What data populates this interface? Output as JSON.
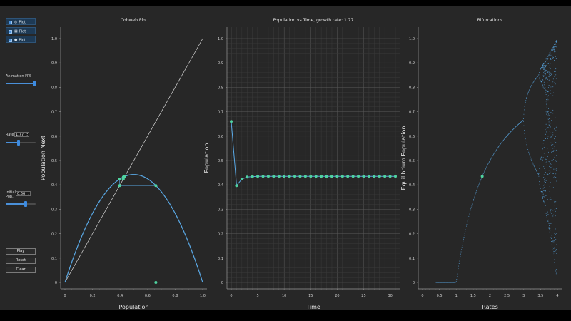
{
  "controls": {
    "checkboxes": [
      {
        "label": "Plot",
        "icon": "circle-icon"
      },
      {
        "label": "Plot",
        "icon": "square-icon"
      },
      {
        "label": "Plot",
        "icon": "dot-icon"
      }
    ],
    "fps": {
      "label": "Animation FPS",
      "level": 0.95
    },
    "rate": {
      "label": "Rate",
      "value": "1.77",
      "level": 0.44
    },
    "init": {
      "label_line1": "Initial",
      "label_line2": "Pop.",
      "value": "0.66",
      "level": 0.66
    },
    "buttons": {
      "play": "Play",
      "reset": "Reset",
      "clear": "Clear"
    }
  },
  "colors": {
    "accent": "#4a90d9",
    "line": "#5aa9e6",
    "marker": "#4fd3a0"
  },
  "chart_data": [
    {
      "type": "line",
      "title": "Cobweb Plot",
      "xlabel": "Population",
      "ylabel": "Population Next",
      "xlim": [
        0,
        1
      ],
      "ylim": [
        0,
        1
      ],
      "xticks": [
        "0",
        "0.2",
        "0.4",
        "0.6",
        "0.8",
        "1.0"
      ],
      "yticks": [
        "0",
        "0.1",
        "0.2",
        "0.3",
        "0.4",
        "0.5",
        "0.6",
        "0.7",
        "0.8",
        "0.9",
        "1.0"
      ],
      "rate": 1.77,
      "cobweb": [
        [
          0.66,
          0
        ],
        [
          0.66,
          0.397
        ],
        [
          0.397,
          0.397
        ],
        [
          0.397,
          0.424
        ],
        [
          0.424,
          0.424
        ],
        [
          0.424,
          0.432
        ],
        [
          0.432,
          0.432
        ],
        [
          0.432,
          0.434
        ],
        [
          0.434,
          0.434
        ]
      ],
      "grid": false
    },
    {
      "type": "line",
      "title": "Population vs Time, growth rate: 1.77",
      "xlabel": "Time",
      "ylabel": "Population",
      "xlim": [
        0,
        31
      ],
      "ylim": [
        0,
        1
      ],
      "xticks": [
        "0",
        "5",
        "10",
        "15",
        "20",
        "25",
        "30"
      ],
      "yticks": [
        "0",
        "0.1",
        "0.2",
        "0.3",
        "0.4",
        "0.5",
        "0.6",
        "0.7",
        "0.8",
        "0.9",
        "1.0"
      ],
      "x": [
        0,
        1,
        2,
        3,
        4,
        5,
        6,
        7,
        8,
        9,
        10,
        11,
        12,
        13,
        14,
        15,
        16,
        17,
        18,
        19,
        20,
        21,
        22,
        23,
        24,
        25,
        26,
        27,
        28,
        29,
        30,
        31
      ],
      "y": [
        0.66,
        0.397,
        0.424,
        0.432,
        0.434,
        0.435,
        0.435,
        0.435,
        0.435,
        0.435,
        0.435,
        0.435,
        0.435,
        0.435,
        0.435,
        0.435,
        0.435,
        0.435,
        0.435,
        0.435,
        0.435,
        0.435,
        0.435,
        0.435,
        0.435,
        0.435,
        0.435,
        0.435,
        0.435,
        0.435,
        0.435,
        0.435
      ],
      "grid": true
    },
    {
      "type": "scatter",
      "title": "Bifurcations",
      "xlabel": "Rates",
      "ylabel": "Equilibrium Population",
      "xlim": [
        0,
        4
      ],
      "ylim": [
        0,
        1
      ],
      "xticks": [
        "0",
        "0.5",
        "1",
        "1.5",
        "2",
        "2.5",
        "3",
        "3.5",
        "4"
      ],
      "yticks": [
        "0",
        "0.1",
        "0.2",
        "0.3",
        "0.4",
        "0.5",
        "0.6",
        "0.7",
        "0.8",
        "0.9",
        "1.0"
      ],
      "highlight": {
        "x": 1.77,
        "y": 0.435
      },
      "grid": false
    }
  ]
}
